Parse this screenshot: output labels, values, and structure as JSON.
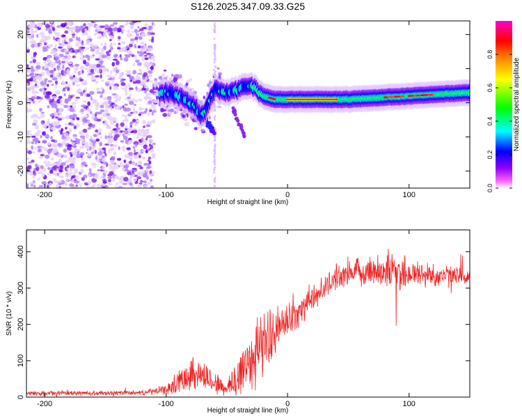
{
  "title": "S126.2025.347.09.33.G25",
  "chart_data": [
    {
      "type": "heatmap",
      "xlabel": "Height of straight line (km)",
      "ylabel": "Frequency (Hz)",
      "xlim": [
        -215,
        150
      ],
      "ylim": [
        -25,
        24
      ],
      "xticks": [
        -200,
        -100,
        0,
        100
      ],
      "yticks": [
        -20,
        -10,
        0,
        10,
        20
      ],
      "colorbar": {
        "label": "Normalized spectral amplitude",
        "range": [
          0,
          1
        ],
        "ticks": [
          "0.0",
          "0.2",
          "0.4",
          "0.6",
          "0.8"
        ],
        "colormap": [
          "#ffffff",
          "#ff00ff",
          "#8000ff",
          "#0000ff",
          "#00ffff",
          "#00ff00",
          "#ffff00",
          "#ff8000",
          "#ff0000",
          "#ff00c0"
        ]
      },
      "features": {
        "scatter_region_km": [
          -215,
          -110
        ],
        "band_center_hz": [
          [
            -100,
            3
          ],
          [
            -90,
            2
          ],
          [
            -80,
            0
          ],
          [
            -70,
            -4
          ],
          [
            -60,
            4
          ],
          [
            -50,
            3
          ],
          [
            -40,
            4
          ],
          [
            -30,
            5
          ],
          [
            -20,
            2
          ],
          [
            -10,
            1
          ],
          [
            0,
            1
          ],
          [
            50,
            1
          ],
          [
            100,
            2
          ],
          [
            150,
            3
          ]
        ],
        "max_amplitude_segment_km": [
          0,
          40
        ]
      }
    },
    {
      "type": "line",
      "xlabel": "Height of straight line (km)",
      "ylabel": "SNR (10 * v/v)",
      "xlim": [
        -215,
        150
      ],
      "ylim": [
        0,
        460
      ],
      "xticks": [
        -200,
        -100,
        0,
        100
      ],
      "yticks": [
        0,
        100,
        200,
        300,
        400
      ],
      "color": "#ee2222",
      "envelope": {
        "x": [
          -215,
          -120,
          -100,
          -90,
          -80,
          -70,
          -60,
          -50,
          -40,
          -30,
          -20,
          -10,
          0,
          10,
          20,
          30,
          40,
          60,
          80,
          90,
          100,
          120,
          150
        ],
        "mean": [
          10,
          12,
          20,
          40,
          70,
          60,
          40,
          20,
          60,
          110,
          150,
          180,
          210,
          240,
          270,
          300,
          330,
          345,
          350,
          345,
          340,
          335,
          330
        ],
        "noise": [
          6,
          6,
          12,
          30,
          45,
          40,
          30,
          20,
          70,
          90,
          80,
          60,
          45,
          40,
          35,
          30,
          30,
          35,
          45,
          55,
          40,
          30,
          25
        ]
      }
    }
  ]
}
